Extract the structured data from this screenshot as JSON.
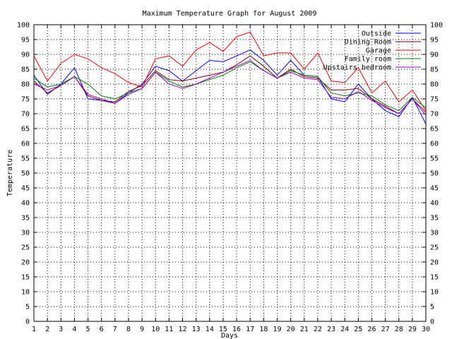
{
  "chart_data": {
    "type": "line",
    "title": "Maximum Temperature Graph for August 2009",
    "xlabel": "Days",
    "ylabel": "Temperature",
    "x": [
      1,
      2,
      3,
      4,
      5,
      6,
      7,
      8,
      9,
      10,
      11,
      12,
      13,
      14,
      15,
      16,
      17,
      18,
      19,
      20,
      21,
      22,
      23,
      24,
      25,
      26,
      27,
      28,
      29,
      30
    ],
    "xlim": [
      1,
      30
    ],
    "ylim": [
      0,
      100
    ],
    "y_ticks": [
      0,
      5,
      10,
      15,
      20,
      25,
      30,
      35,
      40,
      45,
      50,
      55,
      60,
      65,
      70,
      75,
      80,
      85,
      90,
      95,
      100
    ],
    "secondary_y_axis": true,
    "grid": true,
    "legend_position": "top-right",
    "series": [
      {
        "name": "Outside",
        "color": "#0000ff",
        "values": [
          83,
          76.5,
          80,
          85.5,
          75,
          74.5,
          73.5,
          77,
          80,
          86,
          84.5,
          81,
          84.5,
          88,
          87.5,
          89.5,
          91.5,
          88,
          83,
          88,
          83,
          82.5,
          75,
          74,
          80,
          75,
          71,
          69,
          75.5,
          66.5
        ]
      },
      {
        "name": "Dining Room",
        "color": "#800000",
        "values": [
          81,
          77,
          79.5,
          82.5,
          76,
          74.5,
          74,
          77.5,
          79.5,
          84.5,
          81.5,
          81,
          82,
          83,
          84,
          86.5,
          89.5,
          86,
          82,
          85,
          82.5,
          82,
          78,
          78,
          78.5,
          75,
          72.5,
          70,
          75,
          70.5
        ]
      },
      {
        "name": "Garage",
        "color": "#ff0000",
        "values": [
          89.5,
          81,
          87,
          90,
          88.5,
          85.5,
          83.5,
          80.5,
          79,
          88.5,
          89.5,
          86,
          91.5,
          94,
          91,
          96,
          97.5,
          89.5,
          90.5,
          90.5,
          85,
          90.5,
          81,
          80.5,
          85.5,
          77,
          81,
          74,
          78,
          71
        ]
      },
      {
        "name": "Family room",
        "color": "#008000",
        "values": [
          82,
          79,
          80,
          82.5,
          80,
          76,
          75,
          77,
          78.5,
          84,
          81,
          79,
          80,
          81.5,
          83,
          85.5,
          87.5,
          84.5,
          82,
          84.5,
          83,
          82.5,
          77,
          76,
          77,
          76,
          73,
          71,
          75.5,
          72
        ]
      },
      {
        "name": "Upstairs bedroom",
        "color": "#9400d3",
        "values": [
          80,
          78,
          79.5,
          82.5,
          76.5,
          75,
          73.5,
          76.5,
          78.5,
          84,
          80,
          78.5,
          80,
          82,
          84,
          86,
          88,
          84.5,
          82,
          84,
          82,
          81.5,
          75.5,
          75,
          77.5,
          74.5,
          72,
          70,
          75,
          69.5
        ]
      }
    ]
  }
}
